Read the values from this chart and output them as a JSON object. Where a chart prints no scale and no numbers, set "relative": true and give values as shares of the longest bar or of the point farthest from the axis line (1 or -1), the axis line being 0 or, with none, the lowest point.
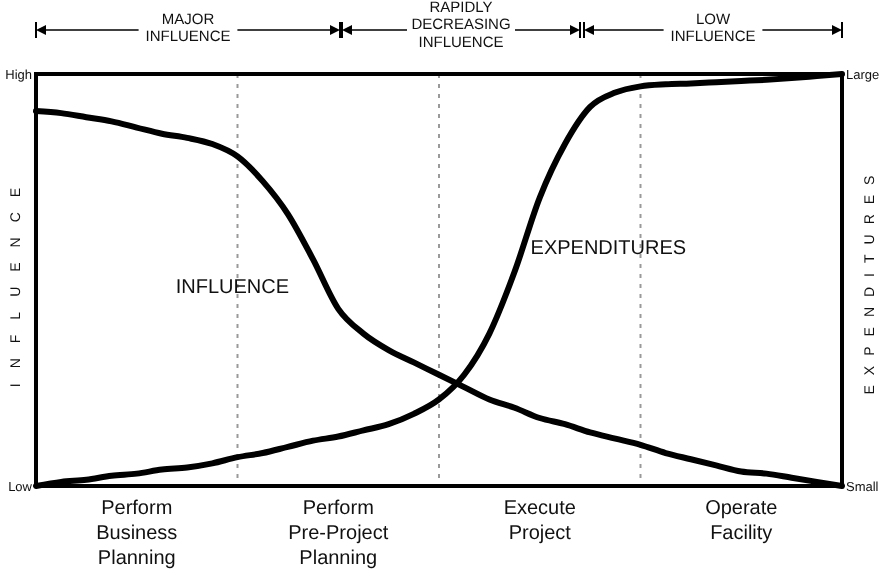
{
  "chart_data": {
    "type": "line",
    "relative": true,
    "ylabel": "INFLUENCE",
    "y2label": "EXPENDITURES",
    "categories": [
      null,
      null,
      null,
      null,
      "Perform Business Planning",
      null,
      null,
      null,
      null,
      null,
      null,
      null,
      "Perform Pre-Project Planning",
      null,
      null,
      null,
      null,
      null,
      null,
      null,
      "Execute Project",
      null,
      null,
      null,
      null,
      null,
      null,
      null,
      "Operate Facility",
      null,
      null,
      null,
      null
    ],
    "series": [
      {
        "name": "INFLUENCE",
        "color": "#000000",
        "values": [
          0.91,
          0.905,
          0.895,
          0.885,
          0.87,
          0.855,
          0.845,
          0.83,
          0.8,
          0.74,
          0.66,
          0.55,
          0.43,
          0.37,
          0.33,
          0.3,
          0.27,
          0.24,
          0.21,
          0.19,
          0.165,
          0.15,
          0.13,
          0.115,
          0.1,
          0.08,
          0.065,
          0.05,
          0.035,
          0.03,
          0.02,
          0.01,
          0
        ]
      },
      {
        "name": "EXPENDITURES",
        "color": "#000000",
        "values": [
          0,
          0.01,
          0.015,
          0.025,
          0.03,
          0.04,
          0.045,
          0.055,
          0.07,
          0.08,
          0.095,
          0.11,
          0.12,
          0.135,
          0.15,
          0.175,
          0.21,
          0.27,
          0.37,
          0.52,
          0.7,
          0.83,
          0.92,
          0.955,
          0.97,
          0.975,
          0.977,
          0.98,
          0.983,
          0.986,
          0.99,
          0.995,
          1
        ]
      }
    ],
    "grid": "x",
    "annotations": [
      "MAJOR INFLUENCE",
      "RAPIDLY DECREASING INFLUENCE",
      "LOW INFLUENCE",
      "High",
      "Low",
      "Large",
      "Small"
    ],
    "line_style": "solid",
    "marker": "none"
  }
}
